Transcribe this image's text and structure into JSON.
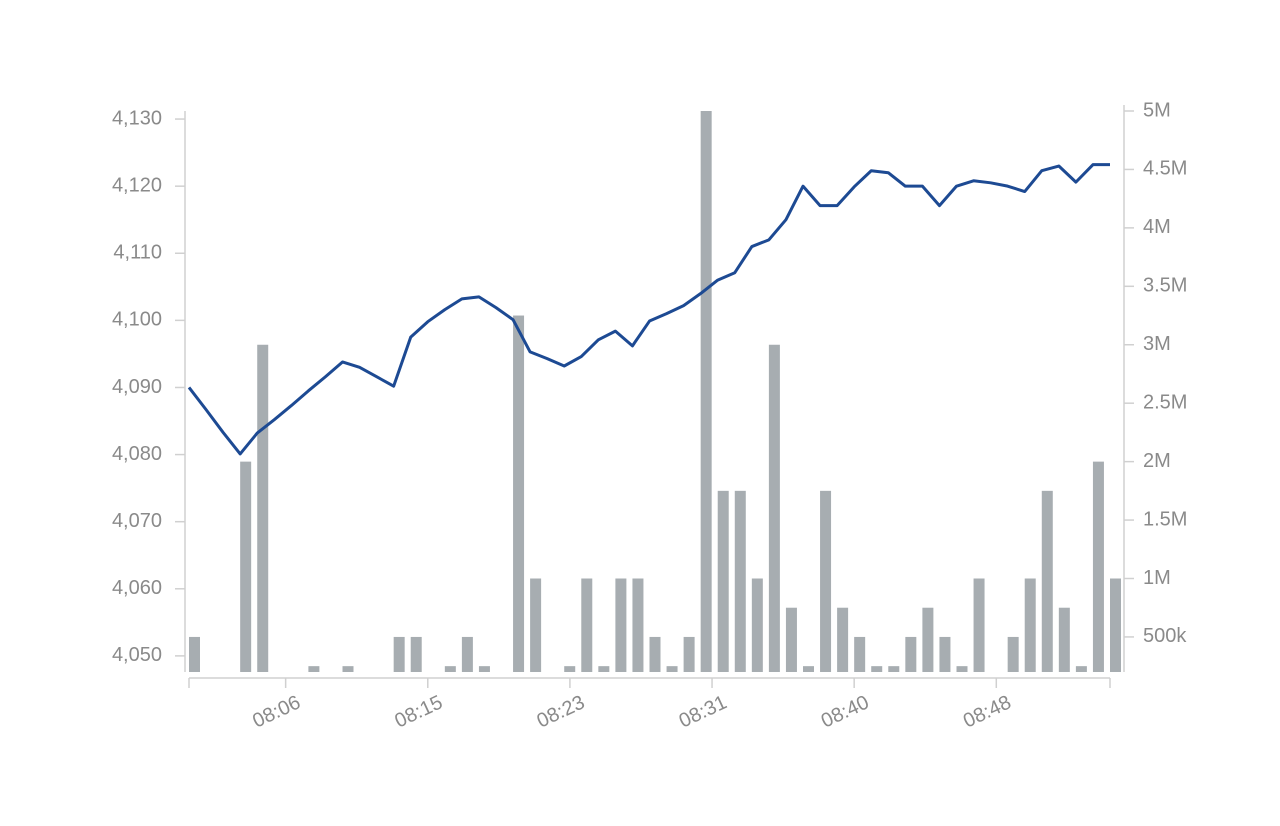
{
  "chart_data": {
    "type": "combo",
    "x": [
      "08:01",
      "08:02",
      "08:03",
      "08:04",
      "08:05",
      "08:06",
      "08:07",
      "08:08",
      "08:09",
      "08:10",
      "08:11",
      "08:12",
      "08:13",
      "08:14",
      "08:15",
      "08:16",
      "08:17",
      "08:18",
      "08:19",
      "08:20",
      "08:21",
      "08:22",
      "08:23",
      "08:24",
      "08:25",
      "08:26",
      "08:27",
      "08:28",
      "08:29",
      "08:30",
      "08:31",
      "08:32",
      "08:33",
      "08:34",
      "08:35",
      "08:36",
      "08:37",
      "08:38",
      "08:39",
      "08:40",
      "08:41",
      "08:42",
      "08:43",
      "08:44",
      "08:45",
      "08:46",
      "08:47",
      "08:48",
      "08:49",
      "08:50",
      "08:51",
      "08:52",
      "08:53",
      "08:54",
      "08:55"
    ],
    "xlim": [
      "08:01",
      "08:55"
    ],
    "xticks": [
      {
        "value": "08:06:40",
        "label": "08:06"
      },
      {
        "value": "08:15:00",
        "label": "08:15"
      },
      {
        "value": "08:23:20",
        "label": "08:23"
      },
      {
        "value": "08:31:40",
        "label": "08:31"
      },
      {
        "value": "08:40:00",
        "label": "08:40"
      },
      {
        "value": "08:48:20",
        "label": "08:48"
      }
    ],
    "ylim": [
      4047.6,
      4131.2
    ],
    "yticks": [
      {
        "value": 4050,
        "label": "4,050"
      },
      {
        "value": 4060,
        "label": "4,060"
      },
      {
        "value": 4070,
        "label": "4,070"
      },
      {
        "value": 4080,
        "label": "4,080"
      },
      {
        "value": 4090,
        "label": "4,090"
      },
      {
        "value": 4100,
        "label": "4,100"
      },
      {
        "value": 4110,
        "label": "4,110"
      },
      {
        "value": 4120,
        "label": "4,120"
      },
      {
        "value": 4130,
        "label": "4,130"
      }
    ],
    "y2lim": [
      200000,
      5000000
    ],
    "y2ticks": [
      {
        "value": 500000,
        "label": "500k"
      },
      {
        "value": 1000000,
        "label": "1M"
      },
      {
        "value": 1500000,
        "label": "1.5M"
      },
      {
        "value": 2000000,
        "label": "2M"
      },
      {
        "value": 2500000,
        "label": "2.5M"
      },
      {
        "value": 3000000,
        "label": "3M"
      },
      {
        "value": 3500000,
        "label": "3.5M"
      },
      {
        "value": 4000000,
        "label": "4M"
      },
      {
        "value": 4500000,
        "label": "4.5M"
      },
      {
        "value": 5000000,
        "label": "5M"
      }
    ],
    "series": [
      {
        "type": "bar",
        "axis": "y2",
        "color": "#a7adb1",
        "values": [
          500000,
          null,
          null,
          2000000,
          3000000,
          null,
          null,
          250000,
          null,
          250000,
          null,
          null,
          500000,
          500000,
          null,
          250000,
          500000,
          250000,
          null,
          3250000,
          1000000,
          null,
          250000,
          1000000,
          250000,
          1000000,
          1000000,
          500000,
          250000,
          500000,
          5000000,
          1750000,
          1750000,
          1000000,
          3000000,
          750000,
          250000,
          1750000,
          750000,
          500000,
          250000,
          250000,
          500000,
          750000,
          500000,
          250000,
          1000000,
          null,
          500000,
          1000000,
          1750000,
          750000,
          250000,
          2000000,
          1000000
        ]
      },
      {
        "type": "line",
        "color": "#1d4a93",
        "values": [
          4090,
          4086.7,
          4083.3,
          4080.1,
          4083.2,
          4085.2,
          4087.3,
          4089.5,
          4091.6,
          4093.8,
          4093,
          4091.6,
          4090.2,
          4097.5,
          4099.8,
          4101.6,
          4103.2,
          4103.5,
          4101.9,
          4100.1,
          4095.3,
          4094.3,
          4093.2,
          4094.6,
          4097.1,
          4098.4,
          4096.2,
          4099.9,
          4101,
          4102.2,
          4104,
          4106,
          4107.1,
          4111,
          4112,
          4115,
          4120,
          4117.1,
          4117.1,
          4119.9,
          4122.3,
          4122,
          4120,
          4120,
          4117.1,
          4120,
          4120.8,
          4120.5,
          4120,
          4119.2,
          4122.3,
          4123,
          4120.6,
          4123.2,
          4123.2
        ]
      }
    ]
  }
}
